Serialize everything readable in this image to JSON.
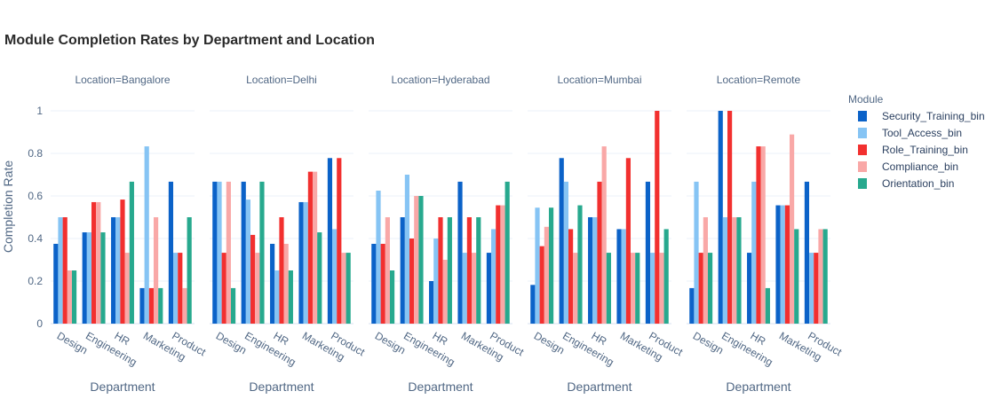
{
  "chart_data": {
    "type": "bar",
    "title": "Module Completion Rates by Department and Location",
    "ylabel": "Completion Rate",
    "xlabel": "Department",
    "ylim": [
      0,
      1.05
    ],
    "yticks": [
      0,
      0.2,
      0.4,
      0.6,
      0.8,
      1
    ],
    "ytick_labels": [
      "0",
      "0.2",
      "0.4",
      "0.6",
      "0.8",
      "1"
    ],
    "legend_title": "Module",
    "legend_position": "right",
    "categories": [
      "Design",
      "Engineering",
      "HR",
      "Marketing",
      "Product"
    ],
    "series": [
      {
        "name": "Security_Training_bin",
        "color": "#0b62c8"
      },
      {
        "name": "Tool_Access_bin",
        "color": "#86c4f4"
      },
      {
        "name": "Role_Training_bin",
        "color": "#f2302f"
      },
      {
        "name": "Compliance_bin",
        "color": "#f9a8a7"
      },
      {
        "name": "Orientation_bin",
        "color": "#27a98e"
      }
    ],
    "facets": [
      {
        "label": "Location=Bangalore",
        "values": [
          [
            0.375,
            0.5,
            0.5,
            0.25,
            0.25
          ],
          [
            0.429,
            0.429,
            0.571,
            0.571,
            0.429
          ],
          [
            0.5,
            0.5,
            0.583,
            0.333,
            0.667
          ],
          [
            0.167,
            0.833,
            0.167,
            0.5,
            0.167
          ],
          [
            0.667,
            0.333,
            0.333,
            0.167,
            0.5
          ]
        ]
      },
      {
        "label": "Location=Delhi",
        "values": [
          [
            0.667,
            0.667,
            0.333,
            0.667,
            0.167
          ],
          [
            0.667,
            0.583,
            0.417,
            0.333,
            0.667
          ],
          [
            0.375,
            0.25,
            0.5,
            0.375,
            0.25
          ],
          [
            0.571,
            0.571,
            0.714,
            0.714,
            0.429
          ],
          [
            0.778,
            0.444,
            0.778,
            0.333,
            0.333
          ]
        ]
      },
      {
        "label": "Location=Hyderabad",
        "values": [
          [
            0.375,
            0.625,
            0.375,
            0.5,
            0.25
          ],
          [
            0.5,
            0.7,
            0.4,
            0.6,
            0.6
          ],
          [
            0.2,
            0.4,
            0.5,
            0.3,
            0.5
          ],
          [
            0.667,
            0.333,
            0.5,
            0.333,
            0.5
          ],
          [
            0.333,
            0.444,
            0.556,
            0.556,
            0.667
          ]
        ]
      },
      {
        "label": "Location=Mumbai",
        "values": [
          [
            0.182,
            0.545,
            0.364,
            0.455,
            0.545
          ],
          [
            0.778,
            0.667,
            0.444,
            0.333,
            0.556
          ],
          [
            0.5,
            0.5,
            0.667,
            0.833,
            0.333
          ],
          [
            0.444,
            0.444,
            0.778,
            0.333,
            0.333
          ],
          [
            0.667,
            0.333,
            1.0,
            0.333,
            0.444
          ]
        ]
      },
      {
        "label": "Location=Remote",
        "values": [
          [
            0.167,
            0.667,
            0.333,
            0.5,
            0.333
          ],
          [
            1.0,
            0.5,
            1.0,
            0.5,
            0.5
          ],
          [
            0.333,
            0.667,
            0.833,
            0.833,
            0.167
          ],
          [
            0.556,
            0.556,
            0.556,
            0.889,
            0.444
          ],
          [
            0.667,
            0.333,
            0.333,
            0.444,
            0.444
          ]
        ]
      }
    ]
  }
}
